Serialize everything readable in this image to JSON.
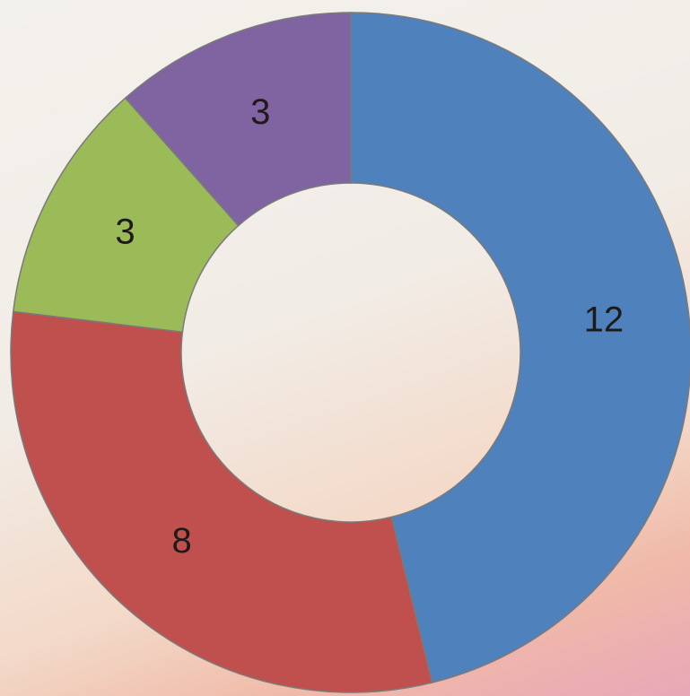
{
  "chart_data": {
    "type": "donut",
    "values": [
      12,
      8,
      3,
      3
    ],
    "colors": [
      "#4f81bd",
      "#c0504d",
      "#9bbb59",
      "#8064a2"
    ]
  }
}
